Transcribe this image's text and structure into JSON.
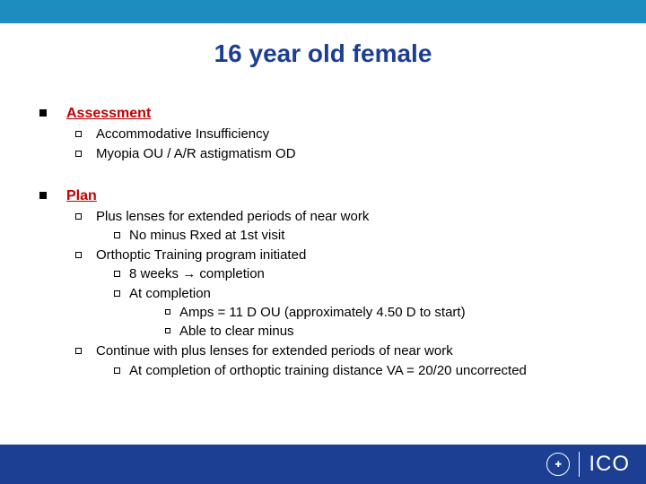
{
  "colors": {
    "top_bar": "#1c8dbe",
    "footer": "#1c3f94",
    "title": "#1c3f94",
    "heading": "#c00000",
    "body_text": "#000000",
    "background": "#ffffff",
    "footer_text": "#ffffff"
  },
  "title": "16 year old female",
  "sections": [
    {
      "heading": "Assessment",
      "items": [
        {
          "text": "Accommodative Insufficiency"
        },
        {
          "text": "Myopia OU / A/R astigmatism OD"
        }
      ]
    },
    {
      "heading": "Plan",
      "items": [
        {
          "text": "Plus lenses for extended periods of near work",
          "sub": [
            {
              "text": "No minus Rxed at 1st visit"
            }
          ]
        },
        {
          "text": "Orthoptic Training program initiated",
          "sub": [
            {
              "text": "8 weeks → completion"
            },
            {
              "text": "At completion",
              "sub": [
                {
                  "text": "Amps = 11 D OU (approximately 4.50 D to start)"
                },
                {
                  "text": "Able to clear minus"
                }
              ]
            }
          ]
        },
        {
          "text": "Continue with plus lenses for extended periods of near work",
          "sub": [
            {
              "text": "At completion of orthoptic training distance VA = 20/20 uncorrected"
            }
          ]
        }
      ]
    }
  ],
  "footer": {
    "seal_glyph": "✚",
    "logo_text": "ICO"
  }
}
